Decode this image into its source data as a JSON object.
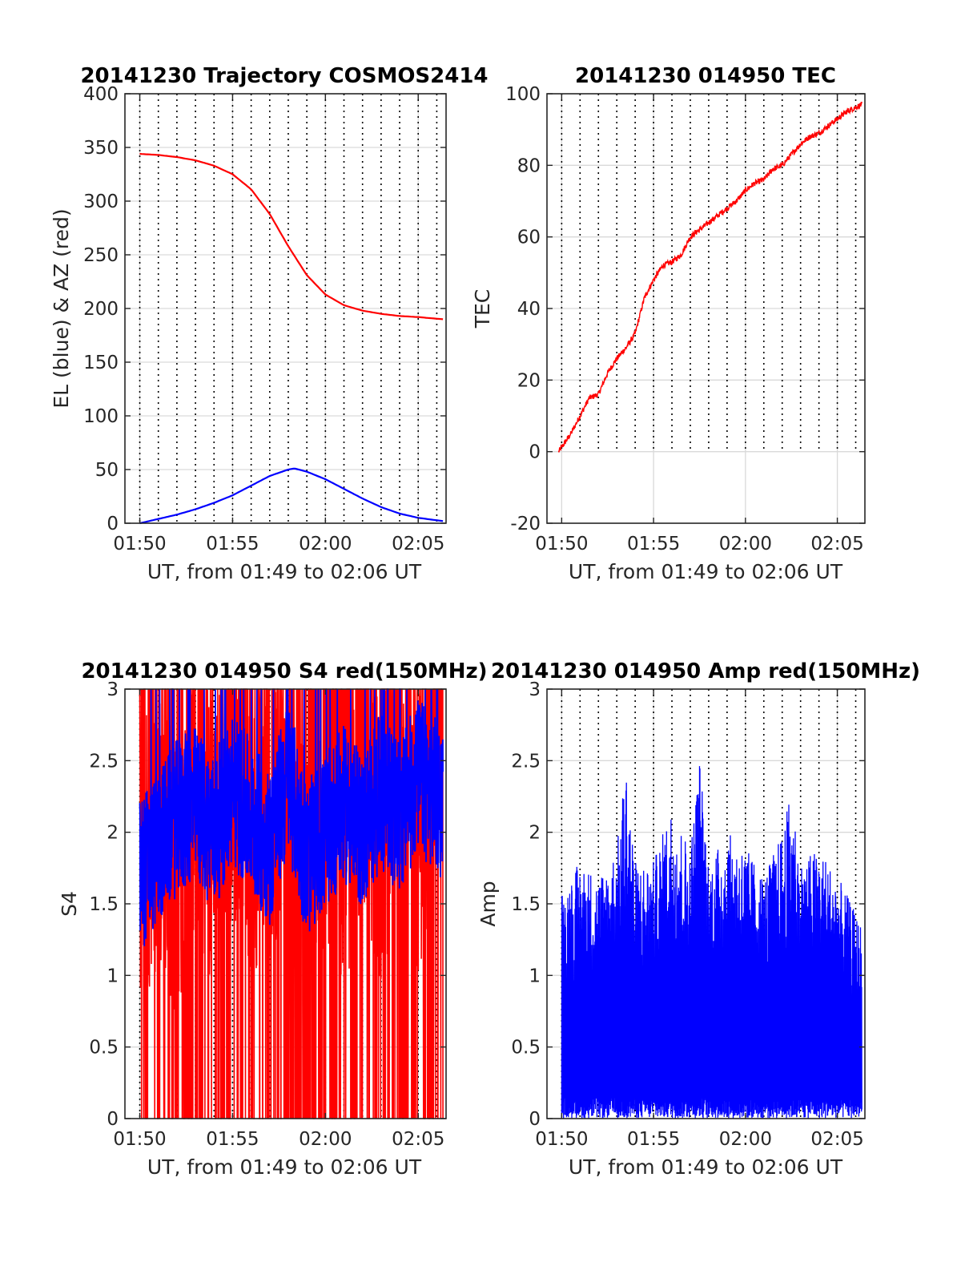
{
  "figure": {
    "background": "#ffffff",
    "colors": {
      "red": "#ff0000",
      "blue": "#0000ff",
      "grid": "#d9d9d9",
      "dotted": "#000000",
      "axis": "#262626"
    }
  },
  "chart_data": [
    {
      "id": "trajectory",
      "type": "line",
      "title": "20141230 Trajectory COSMOS2414",
      "xlabel": "UT, from 01:49 to 02:06 UT",
      "ylabel": "EL (blue) & AZ (red)",
      "x_unit": "minutes after 01:49 UT",
      "xlim": [
        "01:49:12",
        "02:06:30"
      ],
      "ylim": [
        0,
        400
      ],
      "x_ticks": [
        "01:50",
        "01:55",
        "02:00",
        "02:05"
      ],
      "y_ticks": [
        "0",
        "50",
        "100",
        "150",
        "200",
        "250",
        "300",
        "350",
        "400"
      ],
      "grid": true,
      "dotted_minute_lines": true,
      "series": [
        {
          "color": "#ff0000",
          "label_in_ylabel": "AZ (red)",
          "x": [
            "01:50:00",
            "01:51:00",
            "01:52:00",
            "01:53:00",
            "01:54:00",
            "01:55:00",
            "01:56:00",
            "01:57:00",
            "01:58:00",
            "01:59:00",
            "02:00:00",
            "02:01:00",
            "02:02:00",
            "02:03:00",
            "02:04:00",
            "02:05:00",
            "02:06:20"
          ],
          "values": [
            344,
            343,
            341,
            338,
            333,
            325,
            311,
            288,
            258,
            231,
            213,
            203,
            198,
            195,
            193,
            192,
            190
          ]
        },
        {
          "color": "#0000ff",
          "label_in_ylabel": "EL (blue)",
          "x": [
            "01:50:00",
            "01:51:00",
            "01:52:00",
            "01:53:00",
            "01:54:00",
            "01:55:00",
            "01:56:00",
            "01:57:00",
            "01:58:00",
            "01:58:20",
            "01:59:00",
            "02:00:00",
            "02:01:00",
            "02:02:00",
            "02:03:00",
            "02:04:00",
            "02:05:00",
            "02:06:20"
          ],
          "values": [
            0,
            4,
            8,
            13,
            19,
            26,
            35,
            44,
            50,
            51,
            48,
            41,
            32,
            23,
            15,
            9,
            5,
            2
          ]
        }
      ]
    },
    {
      "id": "tec",
      "type": "line",
      "title": "20141230 014950 TEC",
      "xlabel": "UT, from 01:49 to 02:06 UT",
      "ylabel": "TEC",
      "xlim": [
        "01:49:12",
        "02:06:30"
      ],
      "ylim": [
        -20,
        100
      ],
      "x_ticks": [
        "01:50",
        "01:55",
        "02:00",
        "02:05"
      ],
      "y_ticks": [
        "-20",
        "0",
        "20",
        "40",
        "60",
        "80",
        "100"
      ],
      "grid": true,
      "dotted_minute_lines": true,
      "dotted_lines_range": [
        0,
        100
      ],
      "series": [
        {
          "color": "#ff0000",
          "x": [
            "01:49:50",
            "01:50:30",
            "01:51:00",
            "01:51:30",
            "01:52:00",
            "01:52:30",
            "01:53:00",
            "01:53:30",
            "01:54:00",
            "01:54:30",
            "01:55:00",
            "01:55:30",
            "01:56:00",
            "01:56:30",
            "01:57:00",
            "01:57:30",
            "01:58:00",
            "01:58:30",
            "01:59:00",
            "01:59:30",
            "02:00:00",
            "02:00:30",
            "02:01:00",
            "02:01:30",
            "02:02:00",
            "02:02:30",
            "02:03:00",
            "02:03:30",
            "02:04:00",
            "02:04:30",
            "02:05:00",
            "02:05:30",
            "02:06:20"
          ],
          "values": [
            0,
            5,
            10,
            15,
            16,
            22,
            26,
            29,
            33,
            43,
            48,
            52,
            53,
            55,
            60,
            62,
            64,
            66,
            68,
            70,
            73,
            75,
            76,
            79,
            80,
            83,
            86,
            88,
            89,
            91,
            93,
            95,
            97
          ]
        }
      ]
    },
    {
      "id": "s4",
      "type": "line",
      "title": "20141230 014950 S4 red(150MHz)",
      "xlabel": "UT, from 01:49 to 02:06 UT",
      "ylabel": "S4",
      "xlim": [
        "01:49:12",
        "02:06:30"
      ],
      "ylim": [
        0,
        3
      ],
      "x_ticks": [
        "01:50",
        "01:55",
        "02:00",
        "02:05"
      ],
      "y_ticks": [
        "0",
        "0.5",
        "1",
        "1.5",
        "2",
        "2.5",
        "3"
      ],
      "grid": true,
      "dotted_minute_lines": true,
      "series": [
        {
          "color": "#ff0000",
          "note": "spiky trace, dense 0-3 spikes, saturated at 3",
          "x": [
            "01:50:00",
            "01:51:00",
            "01:52:00",
            "01:53:00",
            "01:54:00",
            "01:55:00",
            "01:56:00",
            "01:57:00",
            "01:58:00",
            "01:59:00",
            "02:00:00",
            "02:01:00",
            "02:02:00",
            "02:03:00",
            "02:04:00",
            "02:05:00",
            "02:06:20"
          ],
          "values": [
            1.8,
            2.0,
            1.7,
            2.2,
            1.9,
            2.4,
            2.0,
            2.1,
            2.3,
            1.5,
            2.2,
            1.8,
            2.5,
            1.9,
            2.6,
            2.0,
            2.7
          ]
        },
        {
          "color": "#0000ff",
          "note": "noisy trace around 1.8-2.4",
          "x": [
            "01:50:00",
            "01:51:00",
            "01:52:00",
            "01:53:00",
            "01:54:00",
            "01:55:00",
            "01:56:00",
            "01:57:00",
            "01:58:00",
            "01:59:00",
            "02:00:00",
            "02:01:00",
            "02:02:00",
            "02:03:00",
            "02:04:00",
            "02:05:00",
            "02:06:20"
          ],
          "values": [
            1.7,
            1.9,
            2.1,
            2.2,
            2.0,
            2.3,
            2.1,
            1.9,
            2.4,
            1.8,
            2.0,
            2.2,
            2.0,
            2.3,
            2.1,
            2.4,
            2.2
          ]
        }
      ]
    },
    {
      "id": "amp",
      "type": "line",
      "title": "20141230 014950 Amp red(150MHz)",
      "xlabel": "UT, from 01:49 to 02:06 UT",
      "ylabel": "Amp",
      "xlim": [
        "01:49:12",
        "02:06:30"
      ],
      "ylim": [
        0,
        3
      ],
      "x_ticks": [
        "01:50",
        "01:55",
        "02:00",
        "02:05"
      ],
      "y_ticks": [
        "0",
        "0.5",
        "1",
        "1.5",
        "2",
        "2.5",
        "3"
      ],
      "grid": true,
      "dotted_minute_lines": true,
      "series": [
        {
          "color": "#0000ff",
          "note": "dense oscillation filling 0 up to the envelope",
          "x": [
            "01:50:00",
            "01:51:00",
            "01:52:00",
            "01:53:00",
            "01:53:30",
            "01:54:00",
            "01:55:00",
            "01:56:00",
            "01:57:00",
            "01:57:30",
            "01:58:00",
            "01:59:00",
            "02:00:00",
            "02:01:00",
            "02:02:00",
            "02:02:30",
            "02:03:00",
            "02:04:00",
            "02:05:00",
            "02:06:20"
          ],
          "values": [
            1.6,
            1.8,
            1.7,
            1.9,
            2.5,
            1.8,
            1.8,
            2.2,
            1.9,
            2.55,
            1.8,
            2.0,
            1.9,
            1.7,
            2.0,
            2.3,
            1.8,
            1.9,
            1.7,
            1.35
          ]
        }
      ]
    }
  ]
}
